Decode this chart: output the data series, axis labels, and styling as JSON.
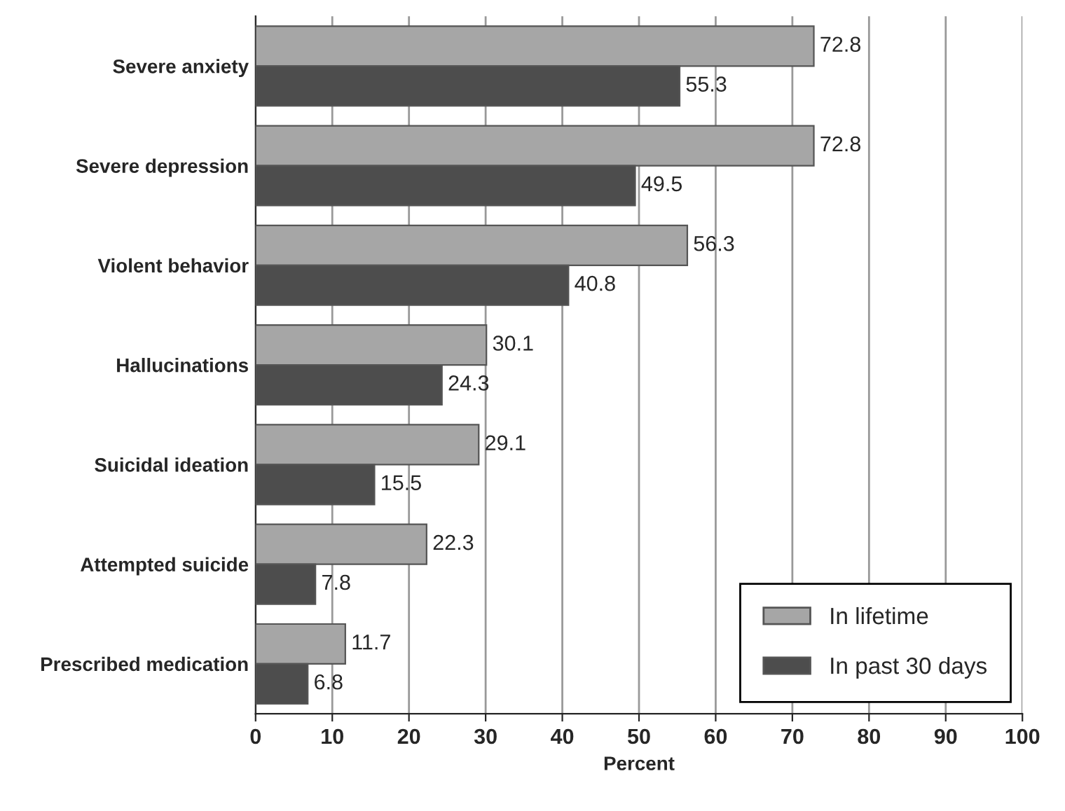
{
  "chart_data": {
    "type": "bar",
    "orientation": "horizontal",
    "xlabel": "Percent",
    "categories": [
      "Severe anxiety",
      "Severe depression",
      "Violent behavior",
      "Hallucinations",
      "Suicidal ideation",
      "Attempted suicide",
      "Prescribed medication"
    ],
    "series": [
      {
        "name": "In lifetime",
        "color": "#a6a6a6",
        "values": [
          72.8,
          72.8,
          56.3,
          30.1,
          29.1,
          22.3,
          11.7
        ]
      },
      {
        "name": "In past 30 days",
        "color": "#4d4d4d",
        "values": [
          55.3,
          49.5,
          40.8,
          24.3,
          15.5,
          7.8,
          6.8
        ]
      }
    ],
    "xlim": [
      0,
      100
    ],
    "xticks": [
      0,
      10,
      20,
      30,
      40,
      50,
      60,
      70,
      80,
      90,
      100
    ],
    "grid": "x",
    "legend": "bottom right",
    "data_labels": true
  }
}
